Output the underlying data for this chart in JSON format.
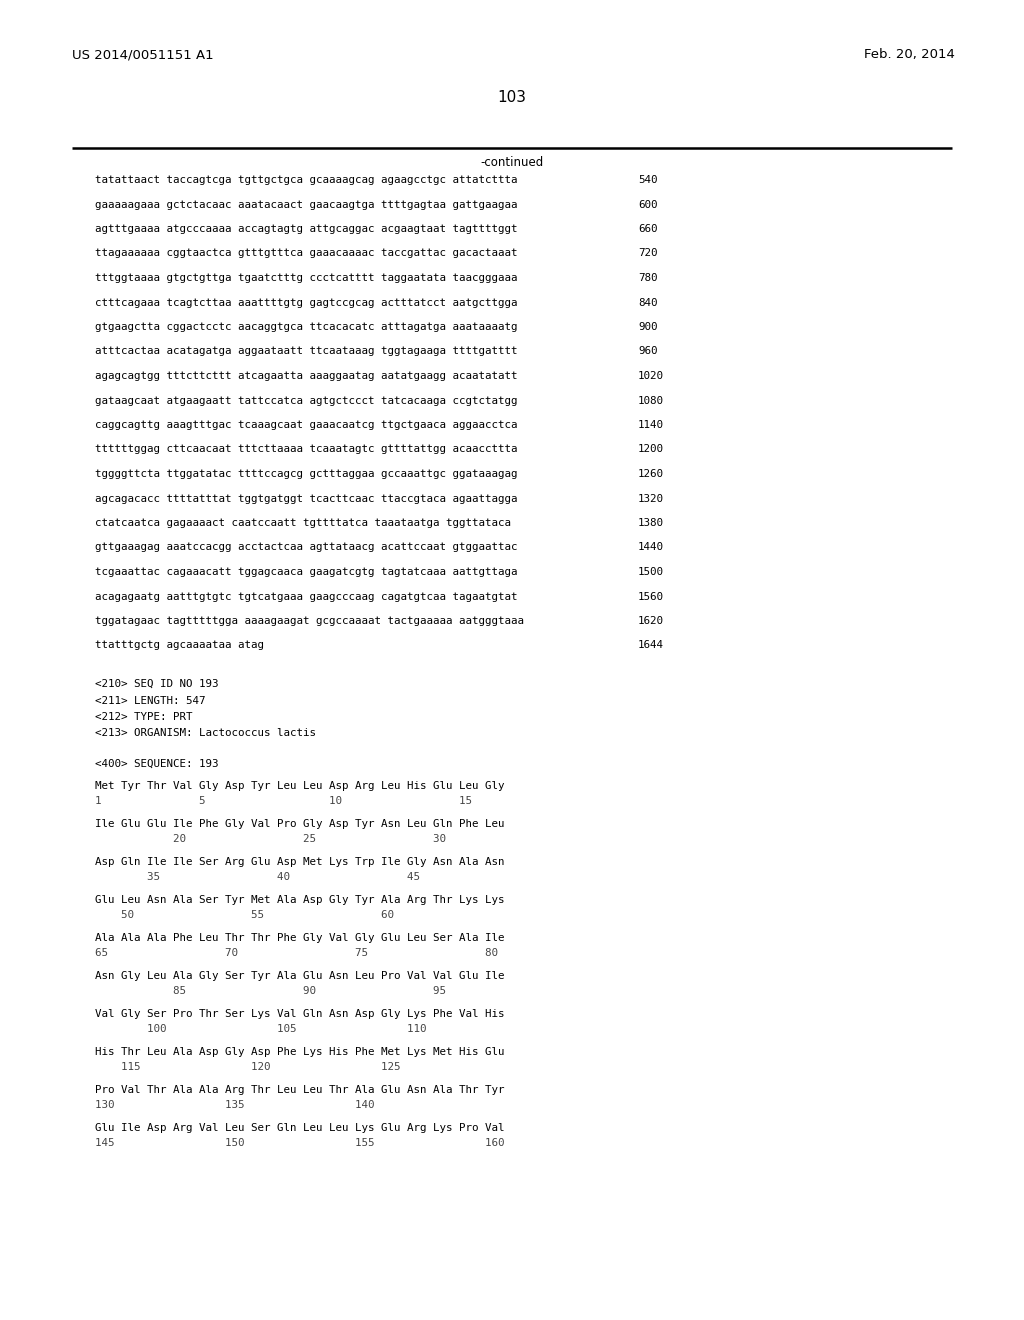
{
  "header_left": "US 2014/0051151 A1",
  "header_right": "Feb. 20, 2014",
  "page_number": "103",
  "continued_label": "-continued",
  "background_color": "#ffffff",
  "text_color": "#000000",
  "line_color": "#000000",
  "header_fontsize": 9.5,
  "page_fontsize": 11,
  "mono_fontsize": 7.8,
  "dna_lines": [
    [
      "tatattaact taccagtcga tgttgctgca gcaaaagcag agaagcctgc attatcttta",
      "540"
    ],
    [
      "gaaaaagaaa gctctacaac aaatacaact gaacaagtga ttttgagtaa gattgaagaa",
      "600"
    ],
    [
      "agtttgaaaa atgcccaaaa accagtagtg attgcaggac acgaagtaat tagttttggt",
      "660"
    ],
    [
      "ttagaaaaaa cggtaactca gtttgtttca gaaacaaaac taccgattac gacactaaat",
      "720"
    ],
    [
      "tttggtaaaa gtgctgttga tgaatctttg ccctcatttt taggaatata taacgggaaa",
      "780"
    ],
    [
      "ctttcagaaa tcagtcttaa aaattttgtg gagtccgcag actttatcct aatgcttgga",
      "840"
    ],
    [
      "gtgaagctta cggactcctc aacaggtgca ttcacacatc atttagatga aaataaaatg",
      "900"
    ],
    [
      "atttcactaa acatagatga aggaataatt ttcaataaag tggtagaaga ttttgatttt",
      "960"
    ],
    [
      "agagcagtgg tttcttcttt atcagaatta aaaggaatag aatatgaagg acaatatatt",
      "1020"
    ],
    [
      "gataagcaat atgaagaatt tattccatca agtgctccct tatcacaaga ccgtctatgg",
      "1080"
    ],
    [
      "caggcagttg aaagtttgac tcaaagcaat gaaacaatcg ttgctgaaca aggaacctca",
      "1140"
    ],
    [
      "ttttttggag cttcaacaat tttcttaaaa tcaaatagtc gttttattgg acaaccttta",
      "1200"
    ],
    [
      "tggggttcta ttggatatac ttttccagcg gctttaggaa gccaaattgc ggataaagag",
      "1260"
    ],
    [
      "agcagacacc ttttatttat tggtgatggt tcacttcaac ttaccgtaca agaattagga",
      "1320"
    ],
    [
      "ctatcaatca gagaaaact caatccaatt tgttttatca taaataatga tggttataca",
      "1380"
    ],
    [
      "gttgaaagag aaatccacgg acctactcaa agttataacg acattccaat gtggaattac",
      "1440"
    ],
    [
      "tcgaaattac cagaaacatt tggagcaaca gaagatcgtg tagtatcaaa aattgttaga",
      "1500"
    ],
    [
      "acagagaatg aatttgtgtc tgtcatgaaa gaagcccaag cagatgtcaa tagaatgtat",
      "1560"
    ],
    [
      "tggatagaac tagtttttgga aaaagaagat gcgccaaaat tactgaaaaa aatgggtaaa",
      "1620"
    ],
    [
      "ttatttgctg agcaaaataa atag",
      "1644"
    ]
  ],
  "meta_lines": [
    "<210> SEQ ID NO 193",
    "<211> LENGTH: 547",
    "<212> TYPE: PRT",
    "<213> ORGANISM: Lactococcus lactis"
  ],
  "seq_label": "<400> SEQUENCE: 193",
  "protein_blocks": [
    {
      "seq": "Met Tyr Thr Val Gly Asp Tyr Leu Leu Asp Arg Leu His Glu Leu Gly",
      "num": "1               5                   10                  15"
    },
    {
      "seq": "Ile Glu Glu Ile Phe Gly Val Pro Gly Asp Tyr Asn Leu Gln Phe Leu",
      "num": "            20                  25                  30"
    },
    {
      "seq": "Asp Gln Ile Ile Ser Arg Glu Asp Met Lys Trp Ile Gly Asn Ala Asn",
      "num": "        35                  40                  45"
    },
    {
      "seq": "Glu Leu Asn Ala Ser Tyr Met Ala Asp Gly Tyr Ala Arg Thr Lys Lys",
      "num": "    50                  55                  60"
    },
    {
      "seq": "Ala Ala Ala Phe Leu Thr Thr Phe Gly Val Gly Glu Leu Ser Ala Ile",
      "num": "65                  70                  75                  80"
    },
    {
      "seq": "Asn Gly Leu Ala Gly Ser Tyr Ala Glu Asn Leu Pro Val Val Glu Ile",
      "num": "            85                  90                  95"
    },
    {
      "seq": "Val Gly Ser Pro Thr Ser Lys Val Gln Asn Asp Gly Lys Phe Val His",
      "num": "        100                 105                 110"
    },
    {
      "seq": "His Thr Leu Ala Asp Gly Asp Phe Lys His Phe Met Lys Met His Glu",
      "num": "    115                 120                 125"
    },
    {
      "seq": "Pro Val Thr Ala Ala Arg Thr Leu Leu Thr Ala Glu Asn Ala Thr Tyr",
      "num": "130                 135                 140"
    },
    {
      "seq": "Glu Ile Asp Arg Val Leu Ser Gln Leu Leu Lys Glu Arg Lys Pro Val",
      "num": "145                 150                 155                 160"
    }
  ]
}
